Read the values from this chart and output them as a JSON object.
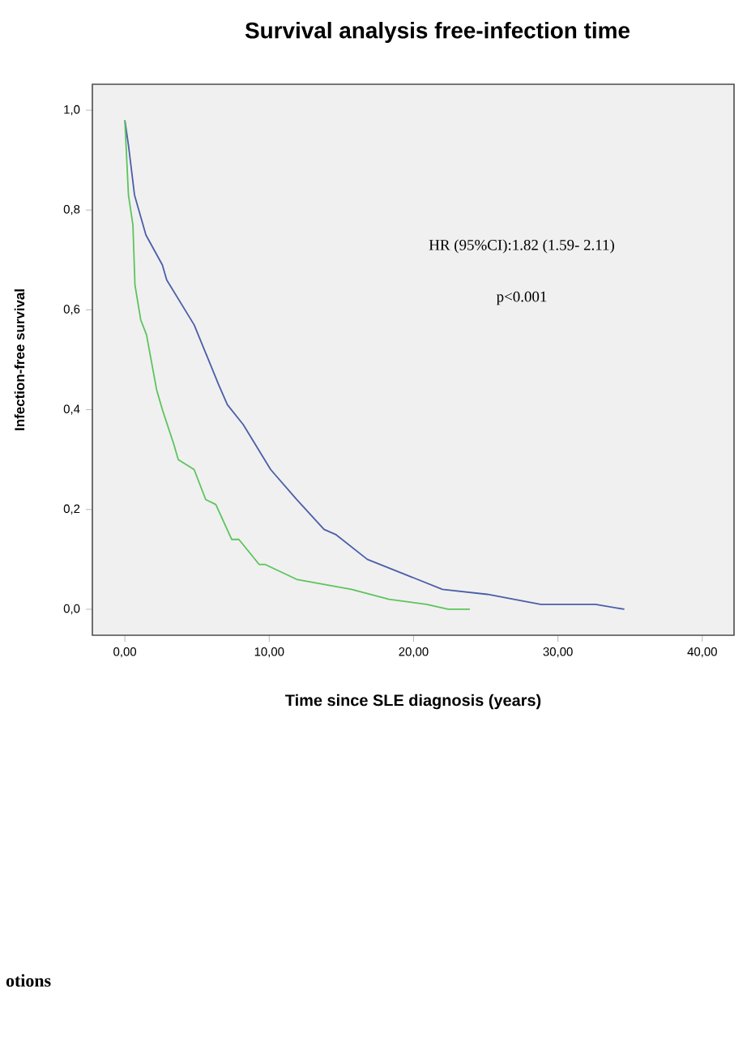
{
  "chart_data": {
    "type": "line",
    "title": "Survival analysis free-infection time",
    "xlabel": "Time since SLE diagnosis (years)",
    "ylabel": "Infection-free survival",
    "annotations": [
      "HR (95%CI):1.82 (1.59- 2.11)",
      "p<0.001",
      "otions"
    ],
    "xlim": [
      -2.25,
      42.2
    ],
    "ylim": [
      -0.052,
      1.052
    ],
    "xticks": [
      {
        "value": 0,
        "label": "0,00"
      },
      {
        "value": 10,
        "label": "10,00"
      },
      {
        "value": 20,
        "label": "20,00"
      },
      {
        "value": 30,
        "label": "30,00"
      },
      {
        "value": 40,
        "label": "40,00"
      }
    ],
    "yticks": [
      {
        "value": 0,
        "label": "0,0"
      },
      {
        "value": 0.2,
        "label": "0,2"
      },
      {
        "value": 0.4,
        "label": "0,4"
      },
      {
        "value": 0.6,
        "label": "0,6"
      },
      {
        "value": 0.8,
        "label": "0,8"
      },
      {
        "value": 1.0,
        "label": "1,0"
      }
    ],
    "marker": "none",
    "line_style": "solid",
    "series": [
      {
        "color": "#4a5ea8",
        "x": [
          0,
          0.25,
          0.67,
          1.46,
          2.6,
          2.9,
          4.8,
          6.5,
          7.1,
          8.2,
          10.1,
          11.9,
          13.8,
          14.6,
          16.8,
          19.4,
          22.0,
          25.1,
          28.8,
          32.6,
          34.6
        ],
        "values": [
          0.98,
          0.93,
          0.83,
          0.75,
          0.69,
          0.66,
          0.57,
          0.45,
          0.41,
          0.37,
          0.28,
          0.22,
          0.16,
          0.15,
          0.1,
          0.07,
          0.04,
          0.03,
          0.01,
          0.01,
          0.0
        ]
      },
      {
        "color": "#5cc45c",
        "x": [
          0,
          0.25,
          0.56,
          0.7,
          1.1,
          1.5,
          2.2,
          2.6,
          3.4,
          3.7,
          4.8,
          5.6,
          6.3,
          7.4,
          7.9,
          9.3,
          9.7,
          11.9,
          15.7,
          18.3,
          20.9,
          22.4,
          23.9
        ],
        "values": [
          0.98,
          0.83,
          0.77,
          0.65,
          0.58,
          0.55,
          0.44,
          0.4,
          0.33,
          0.3,
          0.28,
          0.22,
          0.21,
          0.14,
          0.14,
          0.09,
          0.09,
          0.06,
          0.04,
          0.02,
          0.01,
          0.0,
          0.0
        ]
      }
    ]
  }
}
